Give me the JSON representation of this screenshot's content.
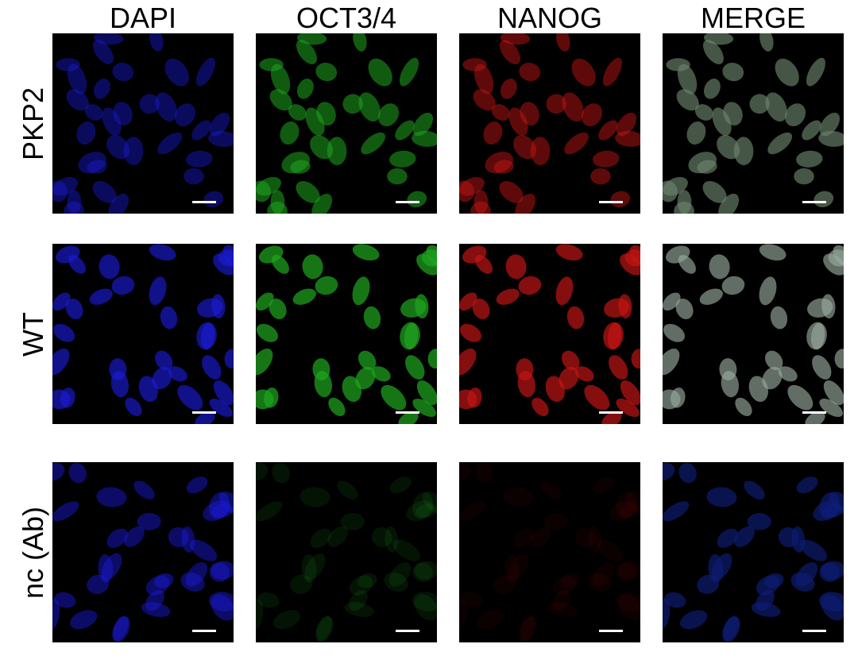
{
  "columns": [
    {
      "label": "DAPI",
      "channel": "blue",
      "color": "#1a1ad6"
    },
    {
      "label": "OCT3/4",
      "channel": "green",
      "color": "#1fa31f"
    },
    {
      "label": "NANOG",
      "channel": "red",
      "color": "#c41414"
    },
    {
      "label": "MERGE",
      "channel": "merge",
      "color": "#8fb3a8"
    }
  ],
  "rows": [
    {
      "label": "PKP2",
      "intensity": {
        "blue": 0.55,
        "green": 0.7,
        "red": 0.6
      }
    },
    {
      "label": "WT",
      "intensity": {
        "blue": 0.8,
        "green": 0.9,
        "red": 0.85
      }
    },
    {
      "label": "nc (Ab)",
      "intensity": {
        "blue": 0.6,
        "green": 0.15,
        "red": 0.08
      }
    }
  ],
  "scale_bar": "present"
}
